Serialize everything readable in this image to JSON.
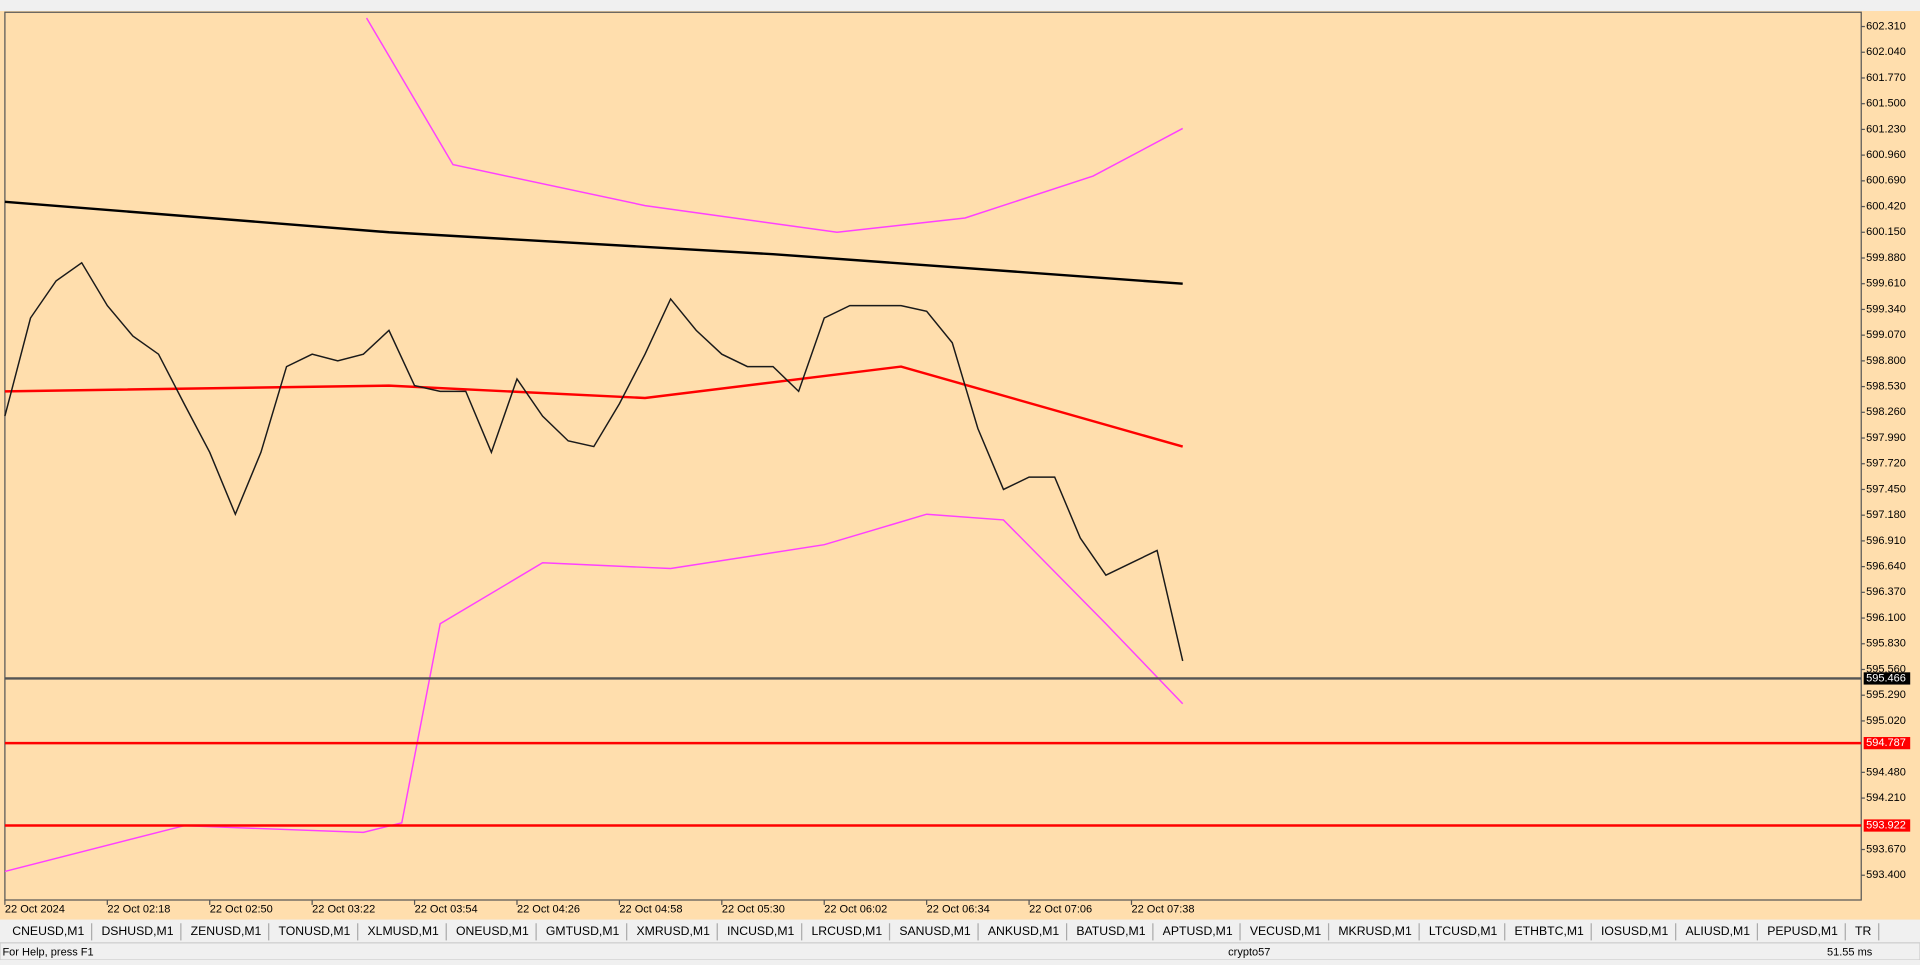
{
  "chart_data": {
    "type": "line",
    "xlim": [
      0,
      580
    ],
    "ylim": [
      593.14,
      602.46
    ],
    "xticks": [
      {
        "value": 0,
        "label": "22 Oct 2024"
      },
      {
        "value": 32,
        "label": "22 Oct 02:18"
      },
      {
        "value": 64,
        "label": "22 Oct 02:50"
      },
      {
        "value": 96,
        "label": "22 Oct 03:22"
      },
      {
        "value": 128,
        "label": "22 Oct 03:54"
      },
      {
        "value": 160,
        "label": "22 Oct 04:26"
      },
      {
        "value": 192,
        "label": "22 Oct 04:58"
      },
      {
        "value": 224,
        "label": "22 Oct 05:30"
      },
      {
        "value": 256,
        "label": "22 Oct 06:02"
      },
      {
        "value": 288,
        "label": "22 Oct 06:34"
      },
      {
        "value": 320,
        "label": "22 Oct 07:06"
      },
      {
        "value": 352,
        "label": "22 Oct 07:38"
      }
    ],
    "yticks": [
      {
        "value": 602.31,
        "label": "602.310"
      },
      {
        "value": 602.04,
        "label": "602.040"
      },
      {
        "value": 601.77,
        "label": "601.770"
      },
      {
        "value": 601.5,
        "label": "601.500"
      },
      {
        "value": 601.23,
        "label": "601.230"
      },
      {
        "value": 600.96,
        "label": "600.960"
      },
      {
        "value": 600.69,
        "label": "600.690"
      },
      {
        "value": 600.42,
        "label": "600.420"
      },
      {
        "value": 600.15,
        "label": "600.150"
      },
      {
        "value": 599.88,
        "label": "599.880"
      },
      {
        "value": 599.61,
        "label": "599.610"
      },
      {
        "value": 599.34,
        "label": "599.340"
      },
      {
        "value": 599.07,
        "label": "599.070"
      },
      {
        "value": 598.8,
        "label": "598.800"
      },
      {
        "value": 598.53,
        "label": "598.530"
      },
      {
        "value": 598.26,
        "label": "598.260"
      },
      {
        "value": 597.99,
        "label": "597.990"
      },
      {
        "value": 597.72,
        "label": "597.720"
      },
      {
        "value": 597.45,
        "label": "597.450"
      },
      {
        "value": 597.18,
        "label": "597.180"
      },
      {
        "value": 596.91,
        "label": "596.910"
      },
      {
        "value": 596.64,
        "label": "596.640"
      },
      {
        "value": 596.37,
        "label": "596.370"
      },
      {
        "value": 596.1,
        "label": "596.100"
      },
      {
        "value": 595.83,
        "label": "595.830"
      },
      {
        "value": 595.56,
        "label": "595.560"
      },
      {
        "value": 595.29,
        "label": "595.290"
      },
      {
        "value": 595.02,
        "label": "595.020"
      },
      {
        "value": 594.48,
        "label": "594.480"
      },
      {
        "value": 594.21,
        "label": "594.210"
      },
      {
        "value": 593.67,
        "label": "593.670"
      },
      {
        "value": 593.4,
        "label": "593.400"
      }
    ],
    "price_lines": [
      {
        "value": 595.466,
        "color": "#555555",
        "label_bg": "#000000"
      },
      {
        "value": 594.787,
        "color": "#ff0000",
        "label_bg": "#ff0000"
      },
      {
        "value": 593.922,
        "color": "#ff0000",
        "label_bg": "#ff0000"
      }
    ],
    "series": [
      {
        "color": "#ff40ff",
        "x": [
          113,
          140,
          200,
          260,
          300,
          340,
          368
        ],
        "values": [
          602.4,
          600.86,
          600.43,
          600.15,
          600.3,
          600.74,
          601.24
        ]
      },
      {
        "color": "#ff40ff",
        "x": [
          0,
          56,
          112,
          124,
          136,
          168,
          208,
          256,
          288,
          312,
          344,
          368
        ],
        "values": [
          593.44,
          593.92,
          593.85,
          593.95,
          596.04,
          596.68,
          596.62,
          596.87,
          597.19,
          597.13,
          596.04,
          595.2
        ]
      },
      {
        "color": "#000000",
        "x": [
          0,
          120,
          240,
          368
        ],
        "values": [
          600.47,
          600.15,
          599.92,
          599.61
        ]
      },
      {
        "color": "#ff0000",
        "x": [
          0,
          120,
          200,
          280,
          368
        ],
        "values": [
          598.48,
          598.54,
          598.41,
          598.74,
          597.9
        ]
      },
      {
        "color": "#1a1a1a",
        "x": [
          0,
          8,
          16,
          24,
          32,
          40,
          48,
          56,
          64,
          72,
          80,
          88,
          96,
          104,
          112,
          120,
          128,
          136,
          144,
          152,
          160,
          168,
          176,
          184,
          192,
          200,
          208,
          216,
          224,
          232,
          240,
          248,
          256,
          264,
          272,
          280,
          288,
          296,
          304,
          312,
          320,
          328,
          336,
          344,
          352,
          360,
          368
        ],
        "values": [
          598.22,
          599.25,
          599.64,
          599.83,
          599.38,
          599.06,
          598.87,
          598.35,
          597.84,
          597.19,
          597.84,
          598.74,
          598.87,
          598.8,
          598.87,
          599.12,
          598.54,
          598.48,
          598.48,
          597.84,
          598.61,
          598.22,
          597.96,
          597.9,
          598.35,
          598.87,
          599.45,
          599.12,
          598.87,
          598.74,
          598.74,
          598.48,
          599.25,
          599.38,
          599.38,
          599.38,
          599.32,
          598.99,
          598.09,
          597.45,
          597.58,
          597.58,
          596.94,
          596.55,
          596.68,
          596.81,
          595.65
        ]
      }
    ]
  },
  "tabs": [
    "CNEUSD,M1",
    "DSHUSD,M1",
    "ZENUSD,M1",
    "TONUSD,M1",
    "XLMUSD,M1",
    "ONEUSD,M1",
    "GMTUSD,M1",
    "XMRUSD,M1",
    "INCUSD,M1",
    "LRCUSD,M1",
    "SANUSD,M1",
    "ANKUSD,M1",
    "BATUSD,M1",
    "APTUSD,M1",
    "VECUSD,M1",
    "MKRUSD,M1",
    "LTCUSD,M1",
    "ETHBTC,M1",
    "IOSUSD,M1",
    "ALIUSD,M1",
    "PEPUSD,M1",
    "TR"
  ],
  "status": {
    "help": "For Help, press F1",
    "account": "crypto57",
    "ping": "51.55 ms"
  }
}
